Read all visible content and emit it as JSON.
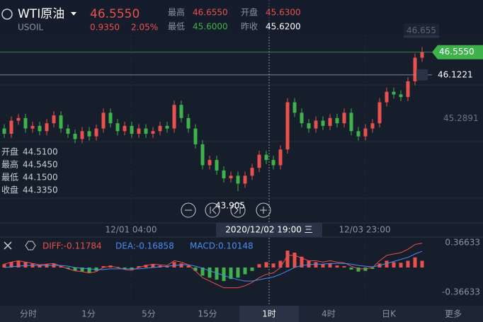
{
  "header": {
    "name": "WTI原油",
    "code": "USOIL",
    "price": "46.5550",
    "change": "0.9350",
    "change_pct": "2.05%",
    "stats": [
      {
        "label": "最高",
        "value": "46.6550"
      },
      {
        "label": "开盘",
        "value": "45.6300"
      },
      {
        "label": "最低",
        "value": "45.6000"
      },
      {
        "label": "昨收",
        "value": "45.6200"
      }
    ]
  },
  "crosshair_info": [
    {
      "label": "开盘",
      "value": "44.5100"
    },
    {
      "label": "最高",
      "value": "44.5450"
    },
    {
      "label": "最低",
      "value": "44.1500"
    },
    {
      "label": "收盘",
      "value": "44.3350"
    }
  ],
  "time_labels": [
    "12/01 04:00",
    "2020/12/02 19:00 三",
    "12/03 23:00"
  ],
  "tabs": [
    "分时",
    "1分",
    "5分",
    "15分",
    "1时",
    "4时",
    "日K",
    "更多"
  ],
  "chart_data": [
    {
      "type": "candlestick",
      "up_color": "#e8514e",
      "down_color": "#3fb24c",
      "ylim": [
        43.3,
        47.55
      ],
      "price_tags": [
        {
          "value": 46.655,
          "label": "46.655"
        },
        {
          "value": 46.555,
          "label": "46.5550"
        },
        {
          "value": 46.1221,
          "label": "46.1221"
        },
        {
          "value": 45.2891,
          "label": "45.2891"
        }
      ],
      "low_label": 43.905,
      "candles": [
        [
          45.1,
          45.18,
          44.92,
          45.0
        ],
        [
          45.0,
          45.33,
          44.92,
          45.25
        ],
        [
          45.25,
          45.38,
          45.17,
          45.3
        ],
        [
          45.3,
          45.38,
          45.02,
          45.1
        ],
        [
          45.1,
          45.23,
          45.02,
          45.15
        ],
        [
          45.15,
          45.23,
          44.97,
          45.05
        ],
        [
          45.05,
          45.28,
          44.97,
          45.2
        ],
        [
          45.2,
          45.43,
          45.12,
          45.35
        ],
        [
          45.35,
          45.43,
          45.02,
          45.1
        ],
        [
          45.1,
          45.18,
          44.92,
          45.0
        ],
        [
          45.0,
          45.08,
          44.82,
          44.9
        ],
        [
          44.9,
          45.13,
          44.82,
          45.05
        ],
        [
          45.05,
          45.13,
          44.87,
          44.95
        ],
        [
          44.95,
          45.18,
          44.87,
          45.1
        ],
        [
          45.1,
          45.48,
          45.02,
          45.4
        ],
        [
          45.4,
          45.48,
          45.12,
          45.2
        ],
        [
          45.2,
          45.28,
          44.97,
          45.05
        ],
        [
          45.05,
          45.23,
          44.97,
          45.15
        ],
        [
          45.15,
          45.23,
          44.92,
          45.0
        ],
        [
          45.0,
          45.18,
          44.92,
          45.1
        ],
        [
          45.1,
          45.18,
          44.92,
          45.0
        ],
        [
          45.0,
          45.13,
          44.92,
          45.05
        ],
        [
          45.05,
          45.23,
          44.97,
          45.15
        ],
        [
          45.15,
          45.23,
          45.02,
          45.1
        ],
        [
          45.1,
          45.63,
          45.02,
          45.55
        ],
        [
          45.55,
          45.63,
          45.22,
          45.3
        ],
        [
          45.3,
          45.38,
          45.02,
          45.1
        ],
        [
          45.1,
          45.18,
          44.72,
          44.8
        ],
        [
          44.8,
          44.88,
          44.32,
          44.4
        ],
        [
          44.4,
          44.58,
          44.32,
          44.5
        ],
        [
          44.5,
          44.58,
          44.22,
          44.3
        ],
        [
          44.3,
          44.38,
          44.07,
          44.15
        ],
        [
          44.15,
          44.28,
          44.07,
          44.2
        ],
        [
          44.2,
          44.28,
          43.905,
          44.05
        ],
        [
          44.05,
          44.28,
          43.97,
          44.2
        ],
        [
          44.2,
          44.43,
          44.12,
          44.35
        ],
        [
          44.35,
          44.68,
          44.27,
          44.6
        ],
        [
          44.6,
          44.68,
          44.42,
          44.5
        ],
        [
          44.5,
          44.58,
          44.32,
          44.4
        ],
        [
          44.4,
          44.78,
          44.32,
          44.7
        ],
        [
          44.7,
          45.68,
          44.62,
          45.6
        ],
        [
          45.6,
          45.68,
          45.32,
          45.4
        ],
        [
          45.4,
          45.48,
          45.12,
          45.2
        ],
        [
          45.2,
          45.28,
          45.02,
          45.1
        ],
        [
          45.1,
          45.33,
          45.02,
          45.25
        ],
        [
          45.25,
          45.33,
          45.07,
          45.15
        ],
        [
          45.15,
          45.38,
          45.07,
          45.3
        ],
        [
          45.3,
          45.38,
          45.12,
          45.2
        ],
        [
          45.2,
          45.48,
          45.12,
          45.4
        ],
        [
          45.4,
          45.48,
          44.97,
          45.05
        ],
        [
          45.05,
          45.13,
          44.87,
          44.95
        ],
        [
          44.95,
          45.18,
          44.87,
          45.1
        ],
        [
          45.1,
          45.28,
          45.02,
          45.2
        ],
        [
          45.2,
          45.68,
          45.12,
          45.6
        ],
        [
          45.6,
          45.88,
          45.52,
          45.8
        ],
        [
          45.8,
          45.88,
          45.67,
          45.75
        ],
        [
          45.75,
          45.83,
          45.62,
          45.7
        ],
        [
          45.7,
          46.08,
          45.62,
          46.0
        ],
        [
          46.0,
          46.53,
          45.92,
          46.45
        ],
        [
          46.45,
          46.655,
          46.37,
          46.555
        ]
      ]
    },
    {
      "type": "macd",
      "ylim": [
        -0.36633,
        0.36633
      ],
      "yticks": [
        0.36633,
        -0.36633
      ],
      "legend": [
        {
          "text": "DIFF:-0.11784",
          "color": "#e8514e"
        },
        {
          "text": "DEA:-0.16858",
          "color": "#4a8cf0"
        },
        {
          "text": "MACD:0.10148",
          "color": "#4a8cf0"
        }
      ],
      "hist": [
        0.05,
        0.08,
        0.1,
        0.08,
        0.06,
        0.04,
        0.05,
        0.06,
        0.02,
        -0.02,
        -0.05,
        -0.06,
        -0.08,
        -0.05,
        0.02,
        0.03,
        0.01,
        -0.02,
        -0.03,
        0.02,
        0.04,
        0.05,
        0.03,
        0.02,
        0.08,
        0.06,
        0.03,
        -0.05,
        -0.12,
        -0.15,
        -0.18,
        -0.2,
        -0.17,
        -0.15,
        -0.1,
        -0.05,
        0.05,
        0.08,
        0.06,
        0.1,
        0.25,
        0.22,
        0.16,
        0.1,
        0.08,
        0.05,
        0.06,
        0.03,
        0.02,
        -0.03,
        -0.06,
        -0.05,
        -0.02,
        0.06,
        0.1,
        0.08,
        0.07,
        0.1,
        0.15,
        0.1
      ],
      "series": [
        {
          "name": "DIFF",
          "color": "#e8514e",
          "values": [
            0.05,
            0.08,
            0.1,
            0.08,
            0.06,
            0.04,
            0.05,
            0.06,
            0.02,
            -0.02,
            -0.05,
            -0.06,
            -0.08,
            -0.06,
            0,
            0.02,
            0,
            -0.03,
            -0.04,
            0,
            0.03,
            0.05,
            0.04,
            0.03,
            0.1,
            0.08,
            0.04,
            -0.05,
            -0.15,
            -0.2,
            -0.25,
            -0.3,
            -0.3,
            -0.3,
            -0.27,
            -0.22,
            -0.15,
            -0.1,
            -0.08,
            0,
            0.18,
            0.18,
            0.14,
            0.1,
            0.1,
            0.08,
            0.1,
            0.08,
            0.07,
            0.02,
            -0.02,
            -0.02,
            0,
            0.1,
            0.18,
            0.2,
            0.22,
            0.27,
            0.34,
            0.36
          ]
        },
        {
          "name": "DEA",
          "color": "#4a8cf0",
          "values": [
            0,
            0.01,
            0.02,
            0.03,
            0.03,
            0.03,
            0.03,
            0.03,
            0.03,
            0.02,
            0,
            -0.01,
            -0.02,
            -0.03,
            -0.03,
            -0.02,
            -0.02,
            -0.02,
            -0.02,
            -0.02,
            -0.01,
            0,
            0.01,
            0.02,
            0.03,
            0.04,
            0.04,
            0.02,
            -0.01,
            -0.05,
            -0.08,
            -0.12,
            -0.15,
            -0.18,
            -0.2,
            -0.2,
            -0.18,
            -0.16,
            -0.14,
            -0.1,
            -0.05,
            0,
            0.03,
            0.04,
            0.05,
            0.05,
            0.06,
            0.06,
            0.06,
            0.05,
            0.03,
            0.02,
            0.01,
            0.03,
            0.06,
            0.09,
            0.12,
            0.15,
            0.2,
            0.24
          ]
        }
      ]
    }
  ]
}
